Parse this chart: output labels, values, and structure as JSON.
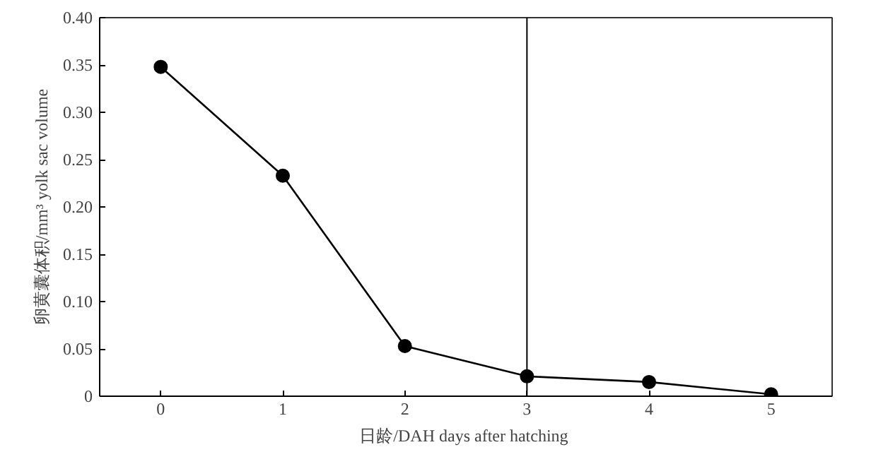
{
  "chart_data": {
    "type": "line",
    "xlabel": "日龄/DAH  days after hatching",
    "ylabel": "卵黄囊体积/mm³ yolk sac volume",
    "x": [
      0,
      1,
      2,
      3,
      4,
      5
    ],
    "series": [
      {
        "color": "#000000",
        "values": [
          0.348,
          0.233,
          0.053,
          0.021,
          0.015,
          0.002
        ]
      }
    ],
    "xlim": [
      -0.5,
      5.5
    ],
    "xticks": [
      0,
      1,
      2,
      3,
      4,
      5
    ],
    "ylim": [
      0,
      0.4
    ],
    "yticks": [
      {
        "value": 0,
        "label": "0"
      },
      {
        "value": 0.05,
        "label": "0.05"
      },
      {
        "value": 0.1,
        "label": "0.10"
      },
      {
        "value": 0.15,
        "label": "0.15"
      },
      {
        "value": 0.2,
        "label": "0.20"
      },
      {
        "value": 0.25,
        "label": "0.25"
      },
      {
        "value": 0.3,
        "label": "0.30"
      },
      {
        "value": 0.35,
        "label": "0.35"
      },
      {
        "value": 0.4,
        "label": "0.40"
      }
    ],
    "ref_lines": [
      {
        "axis": "x",
        "value": 3,
        "color": "#000000"
      }
    ],
    "grid": false,
    "marker": "circle",
    "line_style": "solid"
  }
}
